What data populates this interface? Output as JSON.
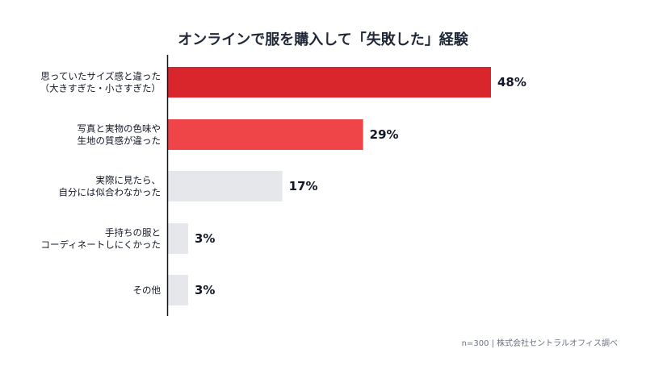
{
  "chart_data": {
    "type": "bar",
    "orientation": "horizontal",
    "title": "オンラインで服を購入して「失敗した」経験",
    "categories": [
      [
        "思っていたサイズ感と違った",
        "（大きすぎた・小さすぎた）"
      ],
      [
        "写真と実物の色味や",
        "生地の質感が違った"
      ],
      [
        "実際に見たら、",
        "自分には似合わなかった"
      ],
      [
        "手持ちの服と",
        "コーディネートしにくかった"
      ],
      [
        "その他"
      ]
    ],
    "values": [
      48,
      29,
      17,
      3,
      3
    ],
    "value_labels": [
      "48%",
      "29%",
      "17%",
      "3%",
      "3%"
    ],
    "unit": "%",
    "xlim": [
      0,
      48
    ],
    "grid": false,
    "legend": "none",
    "colors": [
      "#d9262c",
      "#ef4448",
      "#e5e7eb",
      "#e5e7eb",
      "#e5e7eb"
    ]
  },
  "footnote": "n=300 | 株式会社セントラルオフィス調べ"
}
